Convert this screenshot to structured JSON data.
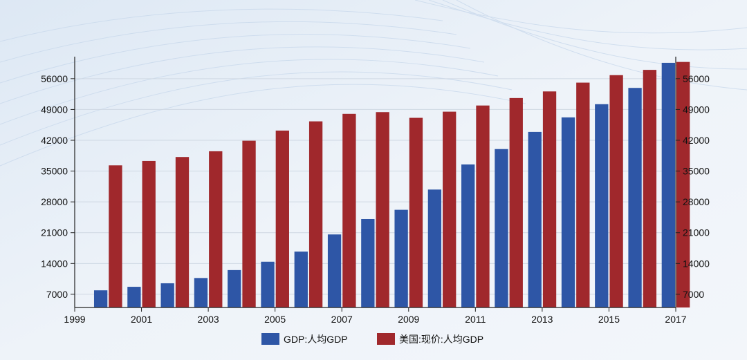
{
  "chart_data": {
    "type": "bar",
    "title": "",
    "xlabel": "",
    "ylabel": "",
    "ylim": [
      4000,
      61000
    ],
    "yticks": [
      7000,
      14000,
      21000,
      28000,
      35000,
      42000,
      49000,
      56000
    ],
    "x_range": [
      1999,
      2017
    ],
    "x_tick_labels": [
      "1999",
      "2001",
      "2003",
      "2005",
      "2007",
      "2009",
      "2011",
      "2013",
      "2015",
      "2017"
    ],
    "categories": [
      2000,
      2001,
      2002,
      2003,
      2004,
      2005,
      2006,
      2007,
      2008,
      2009,
      2010,
      2011,
      2012,
      2013,
      2014,
      2015,
      2016,
      2017
    ],
    "series": [
      {
        "name": "GDP:人均GDP",
        "color": "#2e56a6",
        "values": [
          7900,
          8700,
          9500,
          10700,
          12500,
          14400,
          16700,
          20600,
          24100,
          26200,
          30800,
          36500,
          40000,
          43900,
          47200,
          50200,
          53900,
          59600
        ]
      },
      {
        "name": "美国:现价:人均GDP",
        "color": "#a0282c",
        "values": [
          36300,
          37300,
          38200,
          39500,
          41900,
          44200,
          46300,
          48000,
          48400,
          47100,
          48500,
          49900,
          51600,
          53100,
          55100,
          56800,
          58000,
          59800
        ]
      }
    ],
    "legend_position": "bottom-center",
    "grid": true
  }
}
